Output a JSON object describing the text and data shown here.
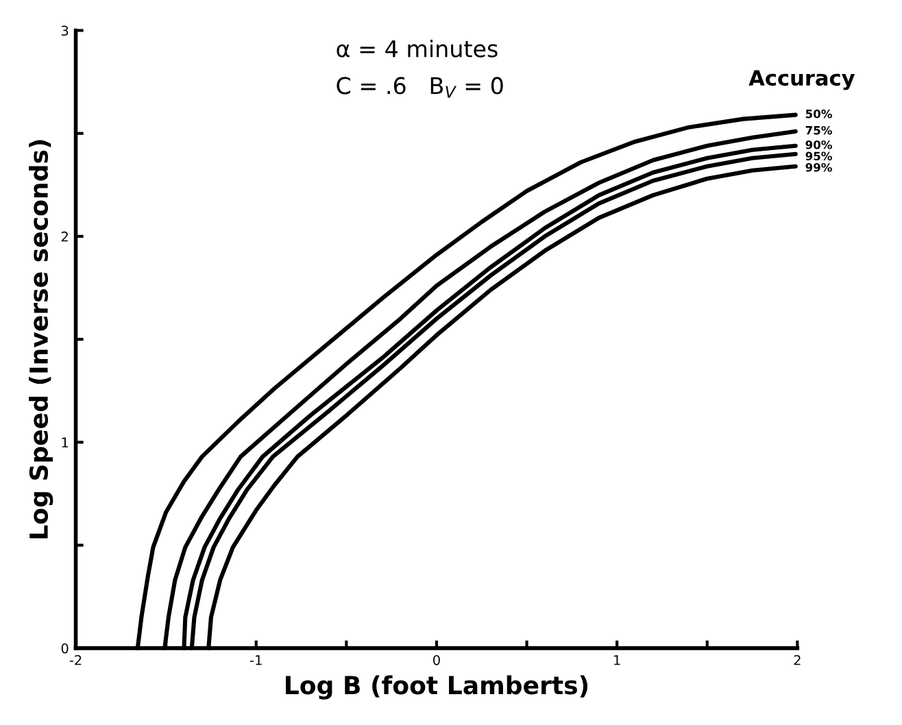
{
  "chart_data": {
    "type": "line",
    "xlabel": "Log B (foot Lamberts)",
    "ylabel": "Log Speed (Inverse seconds)",
    "legend_title": "Accuracy",
    "annotations": [
      "α = 4 minutes",
      "C = .6   B$_{V}$ = 0"
    ],
    "xlim": [
      -2,
      2
    ],
    "ylim": [
      0,
      3
    ],
    "xticks": [
      -2,
      {
        "value": -1.5,
        "label": null
      },
      -1,
      {
        "value": -0.5,
        "label": null
      },
      0,
      {
        "value": 0.5,
        "label": null
      },
      1,
      {
        "value": 1.5,
        "label": null
      },
      2
    ],
    "yticks": [
      0,
      {
        "value": 0.5,
        "label": null
      },
      1,
      {
        "value": 1.5,
        "label": null
      },
      2,
      {
        "value": 2.5,
        "label": null
      },
      3
    ],
    "grid": false,
    "legend": false,
    "marker": "none",
    "line_style": "solid",
    "series": [
      {
        "name": "50%",
        "color": "#000000",
        "x": [
          -1.657,
          -1.636,
          -1.6,
          -1.571,
          -1.5,
          -1.4,
          -1.3,
          -1.1,
          -0.9,
          -0.6,
          -0.3,
          0,
          0.25,
          0.5,
          0.8,
          1.1,
          1.4,
          1.7,
          1.99
        ],
        "values": [
          0,
          0.15,
          0.35,
          0.49,
          0.66,
          0.81,
          0.93,
          1.1,
          1.26,
          1.48,
          1.7,
          1.91,
          2.07,
          2.22,
          2.36,
          2.46,
          2.53,
          2.57,
          2.59
        ]
      },
      {
        "name": "75%",
        "color": "#000000",
        "x": [
          -1.507,
          -1.486,
          -1.45,
          -1.393,
          -1.3,
          -1.2,
          -1.086,
          -0.8,
          -0.5,
          -0.2,
          0,
          0.3,
          0.6,
          0.9,
          1.2,
          1.5,
          1.75,
          1.99
        ],
        "values": [
          0,
          0.15,
          0.33,
          0.49,
          0.64,
          0.78,
          0.93,
          1.15,
          1.38,
          1.6,
          1.76,
          1.95,
          2.12,
          2.26,
          2.37,
          2.44,
          2.48,
          2.51
        ]
      },
      {
        "name": "90%",
        "color": "#000000",
        "x": [
          -1.4,
          -1.393,
          -1.35,
          -1.286,
          -1.2,
          -1.1,
          -0.964,
          -0.7,
          -0.3,
          0,
          0.3,
          0.6,
          0.9,
          1.2,
          1.5,
          1.75,
          1.99
        ],
        "values": [
          0,
          0.15,
          0.33,
          0.49,
          0.63,
          0.77,
          0.93,
          1.13,
          1.41,
          1.64,
          1.85,
          2.04,
          2.2,
          2.31,
          2.38,
          2.42,
          2.44
        ]
      },
      {
        "name": "95%",
        "color": "#000000",
        "x": [
          -1.357,
          -1.343,
          -1.3,
          -1.236,
          -1.15,
          -1.05,
          -0.907,
          -0.6,
          -0.3,
          0,
          0.3,
          0.6,
          0.9,
          1.2,
          1.5,
          1.75,
          1.99
        ],
        "values": [
          0,
          0.15,
          0.33,
          0.49,
          0.63,
          0.77,
          0.93,
          1.15,
          1.37,
          1.6,
          1.81,
          2.0,
          2.16,
          2.27,
          2.34,
          2.38,
          2.4
        ]
      },
      {
        "name": "99%",
        "color": "#000000",
        "x": [
          -1.264,
          -1.25,
          -1.2,
          -1.129,
          -1.0,
          -0.9,
          -0.771,
          -0.5,
          -0.2,
          0,
          0.3,
          0.6,
          0.9,
          1.2,
          1.5,
          1.75,
          1.99
        ],
        "values": [
          0,
          0.15,
          0.33,
          0.49,
          0.67,
          0.79,
          0.93,
          1.13,
          1.36,
          1.52,
          1.74,
          1.93,
          2.09,
          2.2,
          2.28,
          2.32,
          2.34
        ]
      }
    ]
  }
}
